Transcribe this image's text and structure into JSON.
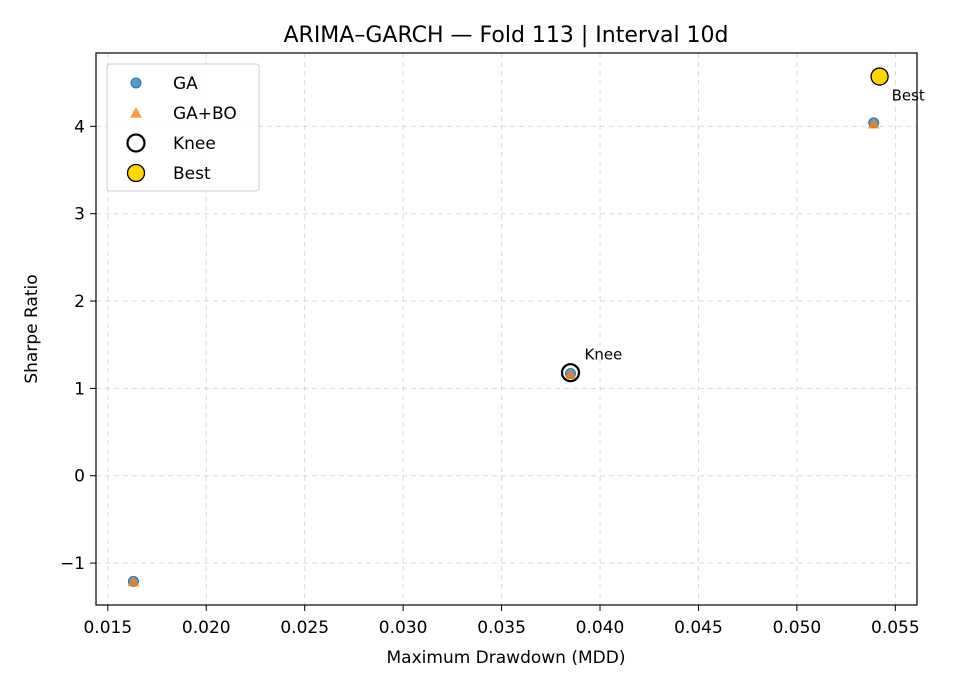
{
  "chart_data": {
    "type": "scatter",
    "title": "ARIMA–GARCH — Fold 113 | Interval 10d",
    "xlabel": "Maximum Drawdown (MDD)",
    "ylabel": "Sharpe Ratio",
    "xlim": [
      0.0144,
      0.0561
    ],
    "ylim": [
      -1.48,
      4.84
    ],
    "xticks": [
      0.015,
      0.02,
      0.025,
      0.03,
      0.035,
      0.04,
      0.045,
      0.05,
      0.055
    ],
    "xtick_labels": [
      "0.015",
      "0.020",
      "0.025",
      "0.030",
      "0.035",
      "0.040",
      "0.045",
      "0.050",
      "0.055"
    ],
    "yticks": [
      -1,
      0,
      1,
      2,
      3,
      4
    ],
    "ytick_labels": [
      "−1",
      "0",
      "1",
      "2",
      "3",
      "4"
    ],
    "grid": true,
    "legend_position": "top-left",
    "series": [
      {
        "name": "GA",
        "marker": "circle",
        "color": "#1f77b4",
        "points": [
          {
            "x": 0.0163,
            "y": -1.21
          },
          {
            "x": 0.0385,
            "y": 1.17
          },
          {
            "x": 0.0539,
            "y": 4.04
          }
        ]
      },
      {
        "name": "GA+BO",
        "marker": "triangle",
        "color": "#ff7f0e",
        "points": [
          {
            "x": 0.0163,
            "y": -1.21
          },
          {
            "x": 0.0385,
            "y": 1.16
          },
          {
            "x": 0.0539,
            "y": 4.03
          }
        ]
      },
      {
        "name": "Knee",
        "marker": "hollow-circle",
        "color": "#000000",
        "points": [
          {
            "x": 0.0385,
            "y": 1.18
          }
        ]
      },
      {
        "name": "Best",
        "marker": "filled-circle",
        "color": "#ffd700",
        "points": [
          {
            "x": 0.0542,
            "y": 4.57
          }
        ]
      }
    ],
    "annotations": [
      {
        "text": "Knee",
        "x": 0.0385,
        "y": 1.18
      },
      {
        "text": "Best",
        "x": 0.0542,
        "y": 4.57
      }
    ]
  }
}
